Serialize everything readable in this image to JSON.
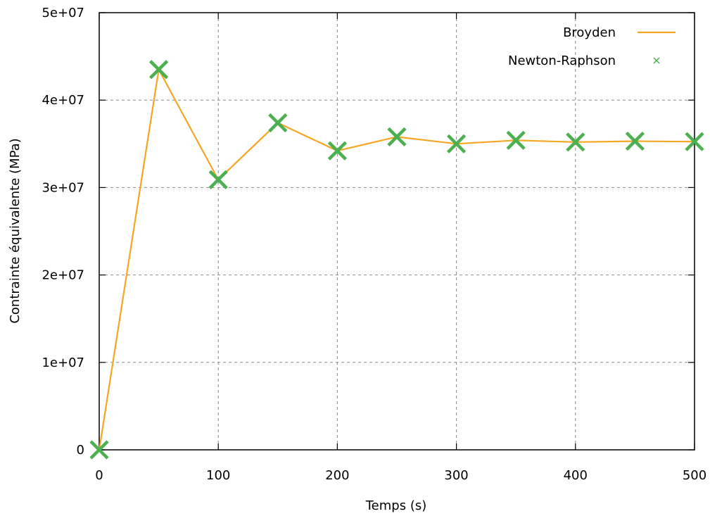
{
  "chart_data": {
    "type": "line",
    "title": "",
    "xlabel": "Temps (s)",
    "ylabel": "Contrainte équivalente (MPa)",
    "xlim": [
      0,
      500
    ],
    "ylim": [
      0,
      50000000
    ],
    "x_ticks": [
      0,
      100,
      200,
      300,
      400,
      500
    ],
    "x_tick_labels": [
      "0",
      "100",
      "200",
      "300",
      "400",
      "500"
    ],
    "y_ticks": [
      0,
      10000000,
      20000000,
      30000000,
      40000000,
      50000000
    ],
    "y_tick_labels": [
      "0",
      "1e+07",
      "2e+07",
      "3e+07",
      "4e+07",
      "5e+07"
    ],
    "grid": true,
    "legend_position": "top-right",
    "x": [
      0,
      50,
      100,
      150,
      200,
      250,
      300,
      350,
      400,
      450,
      500
    ],
    "series": [
      {
        "name": "Broyden",
        "style": "line",
        "color": "#f5a623",
        "values": [
          0,
          43500000,
          30900000,
          37400000,
          34200000,
          35800000,
          35000000,
          35400000,
          35200000,
          35300000,
          35250000
        ]
      },
      {
        "name": "Newton-Raphson",
        "style": "cross",
        "color": "#4caf50",
        "values": [
          0,
          43500000,
          30900000,
          37400000,
          34200000,
          35800000,
          35000000,
          35400000,
          35200000,
          35300000,
          35250000
        ]
      }
    ]
  }
}
